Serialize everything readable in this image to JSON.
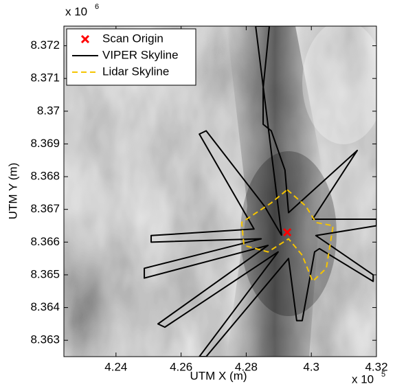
{
  "chart_data": {
    "type": "line",
    "xlabel": "UTM X (m)",
    "ylabel": "UTM Y (m)",
    "x_multiplier": {
      "base": "x 10",
      "exponent": "5"
    },
    "y_multiplier": {
      "base": "x 10",
      "exponent": "6"
    },
    "xlim": [
      4.224,
      4.32
    ],
    "ylim": [
      8.3625,
      8.3726
    ],
    "xticks": [
      4.24,
      4.26,
      4.28,
      4.3,
      4.32
    ],
    "yticks": [
      8.363,
      8.364,
      8.365,
      8.366,
      8.367,
      8.368,
      8.369,
      8.37,
      8.371,
      8.372
    ],
    "legend": "upper left",
    "series": [
      {
        "name": "Scan Origin",
        "color": "#ff0000",
        "marker": "x",
        "line_style": "none",
        "x": [
          4.2926
        ],
        "y": [
          8.3663
        ]
      },
      {
        "name": "VIPER Skyline",
        "color": "#000000",
        "marker": "none",
        "line_style": "solid",
        "x": [
          4.2909,
          4.2829,
          4.2871,
          4.2852,
          4.2852,
          4.2877,
          4.2919,
          4.293,
          4.3141,
          4.3004,
          4.32,
          4.32,
          4.3014,
          4.319,
          4.319,
          4.3025,
          4.301,
          4.2972,
          4.2955,
          4.293,
          4.2677,
          4.2656,
          4.2898,
          4.255,
          4.2529,
          4.2867,
          4.2487,
          4.2487,
          4.2846,
          4.2508,
          4.2508,
          4.2824,
          4.2656,
          4.2677,
          4.2856,
          4.2909
        ],
        "y": [
          8.3662,
          8.3726,
          8.3726,
          8.3707,
          8.3696,
          8.3694,
          8.3682,
          8.3669,
          8.3688,
          8.3667,
          8.3667,
          8.3665,
          8.3662,
          8.365,
          8.3648,
          8.3658,
          8.3657,
          8.3636,
          8.3636,
          8.3655,
          8.3625,
          8.3625,
          8.3657,
          8.3634,
          8.3635,
          8.3659,
          8.3649,
          8.3652,
          8.3661,
          8.366,
          8.3662,
          8.3664,
          8.3693,
          8.3694,
          8.3671,
          8.3662
        ]
      },
      {
        "name": "Lidar Skyline",
        "color": "#f5c400",
        "marker": "none",
        "line_style": "dashed",
        "x": [
          4.2926,
          4.2983,
          4.3014,
          4.3067,
          4.3046,
          4.3004,
          4.2972,
          4.293,
          4.2867,
          4.2793,
          4.2786,
          4.2877,
          4.2926
        ],
        "y": [
          8.3676,
          8.3671,
          8.3666,
          8.3665,
          8.3652,
          8.3648,
          8.3656,
          8.3661,
          8.3657,
          8.3659,
          8.3666,
          8.3672,
          8.3676
        ]
      }
    ]
  }
}
